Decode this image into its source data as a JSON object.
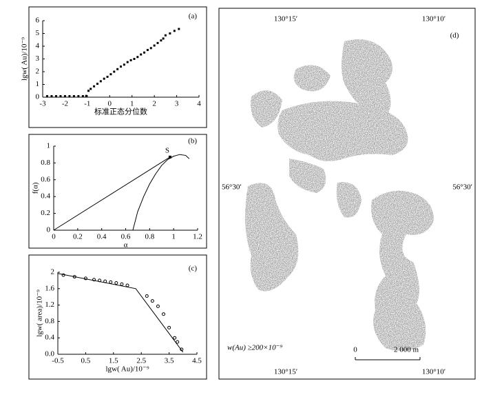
{
  "chart_data": [
    {
      "type": "scatter",
      "panel": "(a)",
      "x_label": "标准正态分位数",
      "y_label": "lgw( Au)/10⁻⁹",
      "xlim": [
        -3,
        4
      ],
      "xticks": [
        -3,
        -2,
        -1,
        0,
        1,
        2,
        3,
        4
      ],
      "ylim": [
        0,
        6
      ],
      "yticks": [
        0,
        1,
        2,
        3,
        4,
        5,
        6
      ],
      "color": "#000000",
      "series": [
        {
          "x": [
            -2.8,
            -2.6,
            -2.4,
            -2.2,
            -2.0,
            -1.8,
            -1.6,
            -1.4,
            -1.2,
            -1.05,
            -0.95,
            -0.85,
            -0.7,
            -0.55,
            -0.4,
            -0.25,
            -0.1,
            0.05,
            0.2,
            0.35,
            0.5,
            0.65,
            0.8,
            0.95,
            1.1,
            1.25,
            1.4,
            1.55,
            1.7,
            1.85,
            2.0,
            2.15,
            2.3,
            2.4,
            2.5,
            2.7,
            2.9,
            3.1
          ],
          "values": [
            0.08,
            0.08,
            0.08,
            0.08,
            0.08,
            0.08,
            0.08,
            0.08,
            0.08,
            0.1,
            0.5,
            0.65,
            0.85,
            1.05,
            1.25,
            1.45,
            1.6,
            1.8,
            2.0,
            2.2,
            2.4,
            2.55,
            2.75,
            2.9,
            3.0,
            3.15,
            3.35,
            3.5,
            3.7,
            3.85,
            4.05,
            4.25,
            4.45,
            4.6,
            4.85,
            5.0,
            5.2,
            5.35
          ]
        }
      ]
    },
    {
      "type": "line",
      "panel": "(b)",
      "x_label": "α",
      "y_label": "f(α)",
      "xlim": [
        0,
        1.2
      ],
      "xticks": [
        0,
        0.2,
        0.4,
        0.6,
        0.8,
        1,
        1.2
      ],
      "ylim": [
        0,
        1
      ],
      "yticks": [
        0,
        0.2,
        0.4,
        0.6,
        0.8,
        1
      ],
      "color": "#000000",
      "series": [
        {
          "x": [
            0,
            0.97
          ],
          "values": [
            0,
            0.87
          ]
        },
        {
          "x": [
            0.66,
            0.7,
            0.75,
            0.8,
            0.85,
            0.9,
            0.95,
            1.0,
            1.05,
            1.1,
            1.13
          ],
          "values": [
            0,
            0.22,
            0.4,
            0.55,
            0.67,
            0.77,
            0.84,
            0.88,
            0.9,
            0.89,
            0.85
          ]
        }
      ],
      "annotation": {
        "text": "S",
        "x": 0.97,
        "y": 0.87
      }
    },
    {
      "type": "scatter",
      "panel": "(c)",
      "x_label": "lgw( Au)/10⁻⁹",
      "y_label": "lgw( area)/10⁻⁹",
      "xlim": [
        -0.5,
        4.5
      ],
      "xticks": [
        -0.5,
        0.5,
        1.5,
        2.5,
        3.5,
        4.5
      ],
      "ylim": [
        0,
        2
      ],
      "yticks": [
        {
          "value": 0,
          "label": "0.0"
        },
        0.4,
        0.8,
        1.2,
        1.6,
        2
      ],
      "color": "#000000",
      "marker": "circle",
      "series": [
        {
          "x": [
            -0.3,
            0.1,
            0.5,
            0.8,
            1.0,
            1.2,
            1.4,
            1.6,
            1.8,
            2.0,
            2.7,
            2.9,
            3.1,
            3.3,
            3.5,
            3.7,
            3.8,
            3.95
          ],
          "values": [
            1.93,
            1.89,
            1.85,
            1.82,
            1.8,
            1.78,
            1.76,
            1.74,
            1.71,
            1.68,
            1.42,
            1.3,
            1.17,
            0.98,
            0.65,
            0.4,
            0.3,
            0.12
          ]
        }
      ],
      "fit": {
        "x": [
          -0.5,
          2.3,
          4.0
        ],
        "values": [
          1.97,
          1.6,
          0.05
        ]
      }
    }
  ],
  "map": {
    "panel": "(d)",
    "top_lon_left": "130°15′",
    "top_lon_right": "130°10′",
    "lat_left": "56°30′",
    "lat_right": "56°30′",
    "bottom_lon_left": "130°15′",
    "bottom_lon_right": "130°10′",
    "legend": "w(Au) ≥200×10⁻⁹",
    "scale_zero": "0",
    "scale_length": "2 000 m"
  }
}
